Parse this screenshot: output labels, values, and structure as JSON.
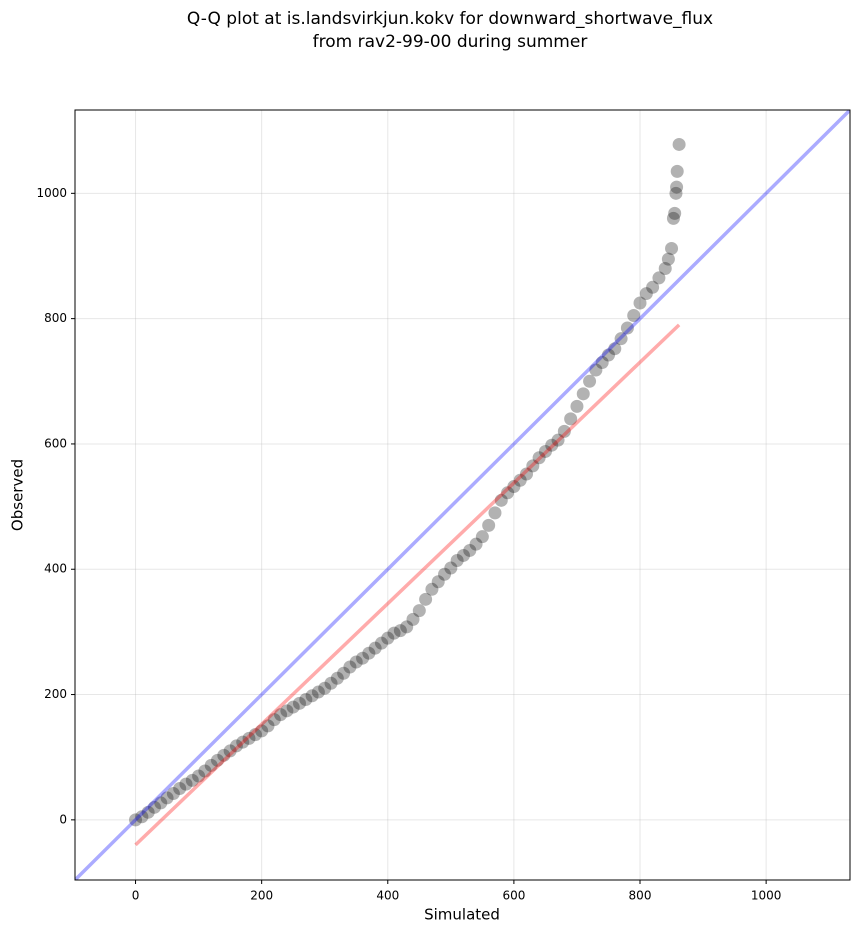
{
  "chart_data": {
    "type": "scatter",
    "title": [
      "Q-Q plot at is.landsvirkjun.kokv for downward_shortwave_flux",
      "from rav2-99-00 during summer"
    ],
    "x_label": "Simulated",
    "y_label": "Observed",
    "xlim": [
      -96,
      1133
    ],
    "ylim": [
      -96,
      1133
    ],
    "xticks": [
      0,
      200,
      400,
      600,
      800,
      1000
    ],
    "yticks": [
      0,
      200,
      400,
      600,
      800,
      1000
    ],
    "grid": true,
    "x": [
      0,
      10,
      20,
      30,
      40,
      50,
      60,
      70,
      80,
      90,
      100,
      110,
      120,
      130,
      140,
      150,
      160,
      170,
      180,
      190,
      200,
      210,
      220,
      230,
      240,
      250,
      260,
      270,
      280,
      290,
      300,
      310,
      320,
      330,
      340,
      350,
      360,
      370,
      380,
      390,
      400,
      410,
      420,
      430,
      440,
      450,
      460,
      470,
      480,
      490,
      500,
      510,
      520,
      530,
      540,
      550,
      560,
      570,
      580,
      590,
      600,
      610,
      620,
      630,
      640,
      650,
      660,
      670,
      680,
      690,
      700,
      710,
      720,
      730,
      740,
      750,
      760,
      770,
      780,
      790,
      800,
      810,
      820,
      830,
      840,
      845,
      850,
      853,
      855,
      857,
      858,
      859,
      862
    ],
    "series": [
      {
        "color": "#000000",
        "opacity": 0.3,
        "values": [
          0,
          5,
          12,
          20,
          27,
          35,
          42,
          50,
          57,
          63,
          70,
          78,
          87,
          95,
          103,
          110,
          118,
          124,
          130,
          136,
          142,
          150,
          160,
          168,
          174,
          180,
          186,
          192,
          198,
          204,
          210,
          218,
          226,
          234,
          244,
          252,
          258,
          266,
          274,
          282,
          290,
          298,
          302,
          308,
          320,
          334,
          352,
          368,
          380,
          392,
          402,
          414,
          422,
          430,
          440,
          452,
          470,
          490,
          510,
          522,
          532,
          542,
          552,
          565,
          578,
          588,
          598,
          606,
          620,
          640,
          660,
          680,
          700,
          718,
          730,
          742,
          752,
          768,
          785,
          805,
          825,
          840,
          850,
          865,
          880,
          895,
          912,
          960,
          968,
          1000,
          1010,
          1035,
          1078
        ]
      }
    ],
    "reference_lines": [
      {
        "color": "#0000ff",
        "opacity": 0.33,
        "slope": 1,
        "intercept": 0
      },
      {
        "color": "#ff0000",
        "opacity": 0.33,
        "slope": 0.963,
        "intercept": -40,
        "x": [
          0,
          862
        ]
      }
    ]
  }
}
